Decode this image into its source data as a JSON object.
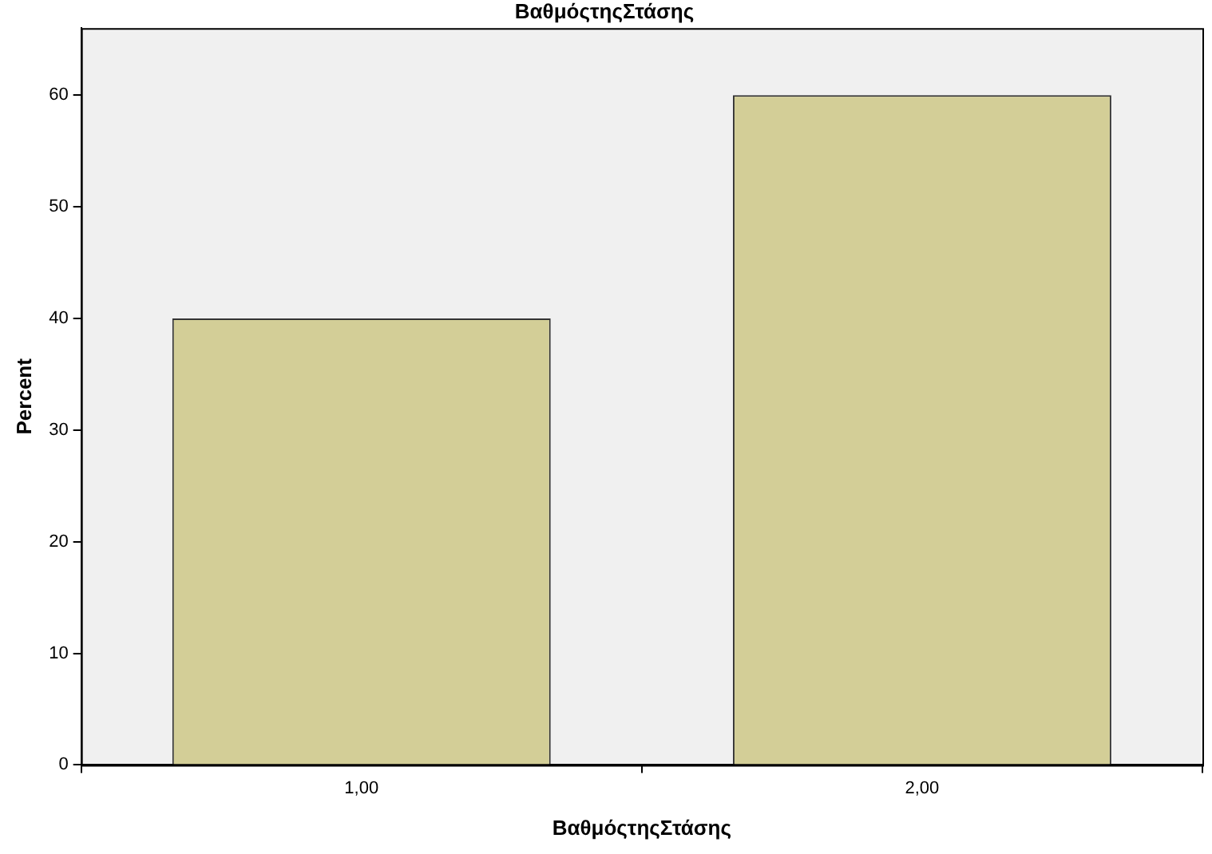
{
  "chart_data": {
    "type": "bar",
    "title": "ΒαθμόςτηςΣτάσης",
    "xlabel": "ΒαθμόςτηςΣτάσης",
    "ylabel": "Percent",
    "categories": [
      "1,00",
      "2,00"
    ],
    "values": [
      40,
      60
    ],
    "color": "#d3ce97",
    "ylim": [
      0,
      66
    ],
    "yticks": [
      0,
      10,
      20,
      30,
      40,
      50,
      60
    ],
    "grid": false,
    "legend": false
  }
}
